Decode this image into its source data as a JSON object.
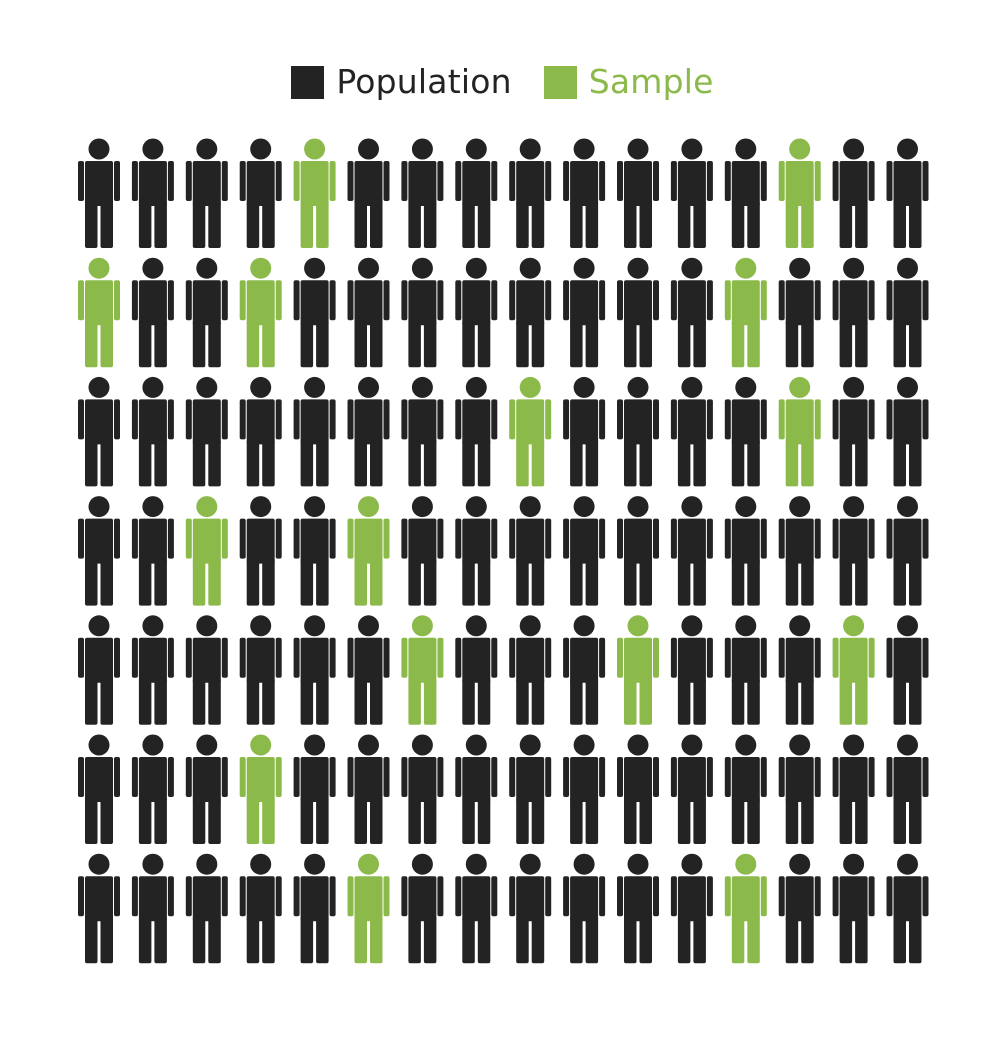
{
  "legend": {
    "population_label": "Population",
    "sample_label": "Sample"
  },
  "colors": {
    "population": "#232323",
    "sample": "#8cba4a",
    "background": "#ffffff"
  },
  "icon": "person-icon",
  "grid": {
    "rows": 7,
    "cols": 16,
    "sample_positions": [
      [
        0,
        4
      ],
      [
        0,
        13
      ],
      [
        1,
        0
      ],
      [
        1,
        3
      ],
      [
        1,
        12
      ],
      [
        2,
        8
      ],
      [
        2,
        13
      ],
      [
        3,
        2
      ],
      [
        3,
        5
      ],
      [
        4,
        6
      ],
      [
        4,
        10
      ],
      [
        4,
        14
      ],
      [
        5,
        3
      ],
      [
        6,
        5
      ],
      [
        6,
        12
      ]
    ]
  }
}
